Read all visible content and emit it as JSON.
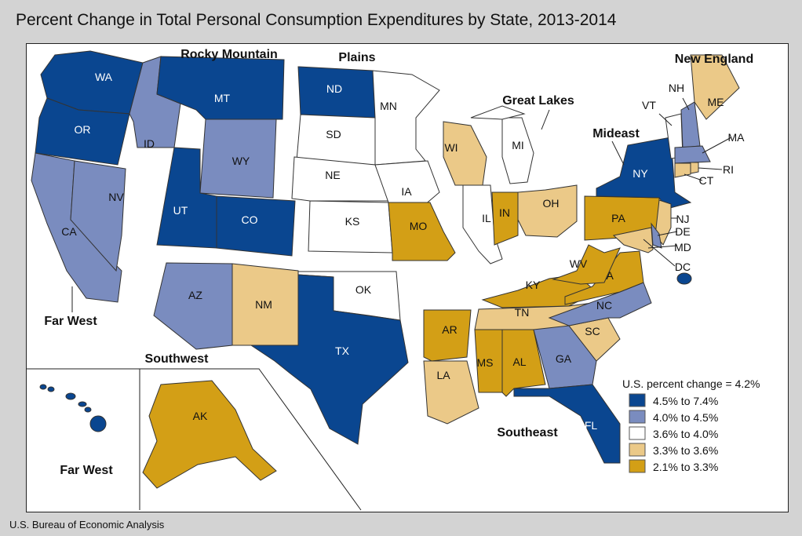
{
  "title": "Percent Change in Total Personal Consumption Expenditures by State, 2013-2014",
  "footer": "U.S. Bureau of Economic Analysis",
  "legend": {
    "title": "U.S. percent change = 4.2%",
    "categories": [
      {
        "id": "c1",
        "label": "4.5% to 7.4%",
        "color": "#0a4690"
      },
      {
        "id": "c2",
        "label": "4.0% to 4.5%",
        "color": "#7a8cbf"
      },
      {
        "id": "c3",
        "label": "3.6% to 4.0%",
        "color": "#ffffff"
      },
      {
        "id": "c4",
        "label": "3.3% to 3.6%",
        "color": "#ebc988"
      },
      {
        "id": "c5",
        "label": "2.1% to 3.3%",
        "color": "#d39f16"
      }
    ]
  },
  "regions": [
    "Rocky Mountain",
    "Plains",
    "Great Lakes",
    "New England",
    "Mideast",
    "Far West",
    "Southwest",
    "Southeast",
    "Far West"
  ],
  "states": [
    {
      "abbr": "WA",
      "cat": "c1"
    },
    {
      "abbr": "OR",
      "cat": "c1"
    },
    {
      "abbr": "CA",
      "cat": "c2"
    },
    {
      "abbr": "NV",
      "cat": "c2"
    },
    {
      "abbr": "ID",
      "cat": "c2"
    },
    {
      "abbr": "MT",
      "cat": "c1"
    },
    {
      "abbr": "WY",
      "cat": "c2"
    },
    {
      "abbr": "UT",
      "cat": "c1"
    },
    {
      "abbr": "CO",
      "cat": "c1"
    },
    {
      "abbr": "AZ",
      "cat": "c2"
    },
    {
      "abbr": "NM",
      "cat": "c4"
    },
    {
      "abbr": "ND",
      "cat": "c1"
    },
    {
      "abbr": "SD",
      "cat": "c3"
    },
    {
      "abbr": "NE",
      "cat": "c3"
    },
    {
      "abbr": "KS",
      "cat": "c3"
    },
    {
      "abbr": "OK",
      "cat": "c3"
    },
    {
      "abbr": "TX",
      "cat": "c1"
    },
    {
      "abbr": "MN",
      "cat": "c3"
    },
    {
      "abbr": "IA",
      "cat": "c3"
    },
    {
      "abbr": "MO",
      "cat": "c5"
    },
    {
      "abbr": "WI",
      "cat": "c4"
    },
    {
      "abbr": "IL",
      "cat": "c3"
    },
    {
      "abbr": "MI",
      "cat": "c3"
    },
    {
      "abbr": "IN",
      "cat": "c5"
    },
    {
      "abbr": "OH",
      "cat": "c4"
    },
    {
      "abbr": "KY",
      "cat": "c5"
    },
    {
      "abbr": "TN",
      "cat": "c4"
    },
    {
      "abbr": "AR",
      "cat": "c5"
    },
    {
      "abbr": "LA",
      "cat": "c4"
    },
    {
      "abbr": "MS",
      "cat": "c5"
    },
    {
      "abbr": "AL",
      "cat": "c5"
    },
    {
      "abbr": "GA",
      "cat": "c2"
    },
    {
      "abbr": "FL",
      "cat": "c1"
    },
    {
      "abbr": "SC",
      "cat": "c4"
    },
    {
      "abbr": "NC",
      "cat": "c2"
    },
    {
      "abbr": "VA",
      "cat": "c5"
    },
    {
      "abbr": "WV",
      "cat": "c5"
    },
    {
      "abbr": "PA",
      "cat": "c5"
    },
    {
      "abbr": "NY",
      "cat": "c1"
    },
    {
      "abbr": "NJ",
      "cat": "c4"
    },
    {
      "abbr": "DE",
      "cat": "c2"
    },
    {
      "abbr": "MD",
      "cat": "c4"
    },
    {
      "abbr": "DC",
      "cat": "c1"
    },
    {
      "abbr": "VT",
      "cat": "c3"
    },
    {
      "abbr": "NH",
      "cat": "c2"
    },
    {
      "abbr": "ME",
      "cat": "c4"
    },
    {
      "abbr": "MA",
      "cat": "c2"
    },
    {
      "abbr": "CT",
      "cat": "c4"
    },
    {
      "abbr": "RI",
      "cat": "c4"
    },
    {
      "abbr": "HI",
      "cat": "c1"
    },
    {
      "abbr": "AK",
      "cat": "c5"
    }
  ]
}
